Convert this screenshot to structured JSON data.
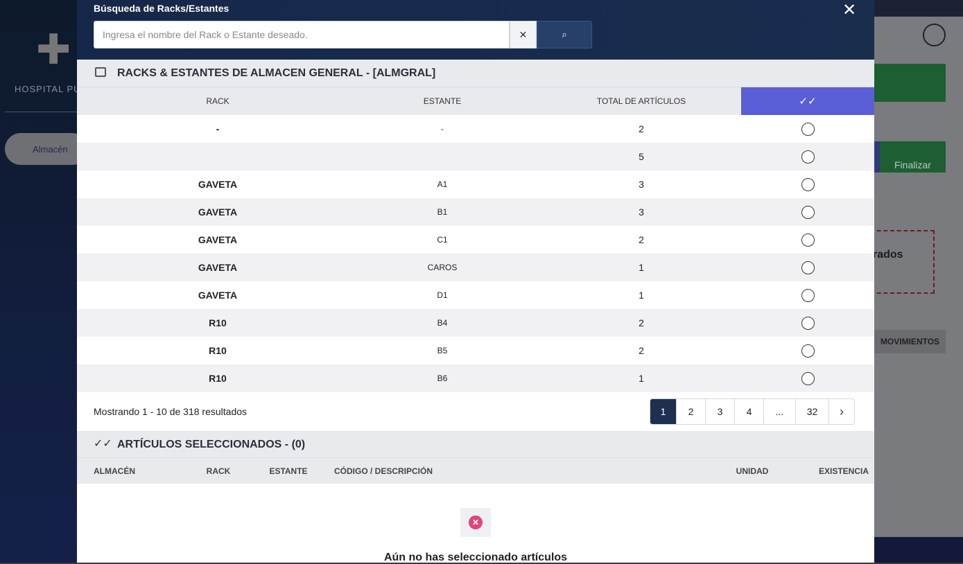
{
  "background": {
    "hospital_name": "HOSPITAL PUE",
    "nav_item": "Almacén",
    "finish_button": "Finalizar",
    "dashed_box_text": "rados",
    "tab_label": "MOVIMIENTOS"
  },
  "modal": {
    "title": "Búsqueda de Racks/Estantes",
    "search_placeholder": "Ingresa el nombre del Rack o Estante deseado.",
    "racks_section": {
      "title": "RACKS & ESTANTES DE ALMACEN GENERAL - [ALMGRAL]",
      "columns": [
        "RACK",
        "ESTANTE",
        "TOTAL DE ARTÍCULOS"
      ],
      "rows": [
        [
          "-",
          "-",
          2
        ],
        [
          null,
          null,
          5
        ],
        [
          "GAVETA",
          "A1",
          3
        ],
        [
          "GAVETA",
          "B1",
          3
        ],
        [
          "GAVETA",
          "C1",
          2
        ],
        [
          "GAVETA",
          "CAROS",
          1
        ],
        [
          "GAVETA",
          "D1",
          1
        ],
        [
          "R10",
          "B4",
          2
        ],
        [
          "R10",
          "B5",
          2
        ],
        [
          "R10",
          "B6",
          1
        ]
      ],
      "summary": "Mostrando 1 - 10 de 318 resultados",
      "pages": [
        "1",
        "2",
        "3",
        "4",
        "...",
        "32"
      ]
    },
    "selected_section": {
      "title": "ARTÍCULOS SELECCIONADOS - (0)",
      "columns": [
        "ALMACÉN",
        "RACK",
        "ESTANTE",
        "CÓDIGO / DESCRIPCIÓN",
        "UNIDAD",
        "EXISTENCIA"
      ],
      "empty_message": "Aún no has seleccionado artículos"
    }
  }
}
